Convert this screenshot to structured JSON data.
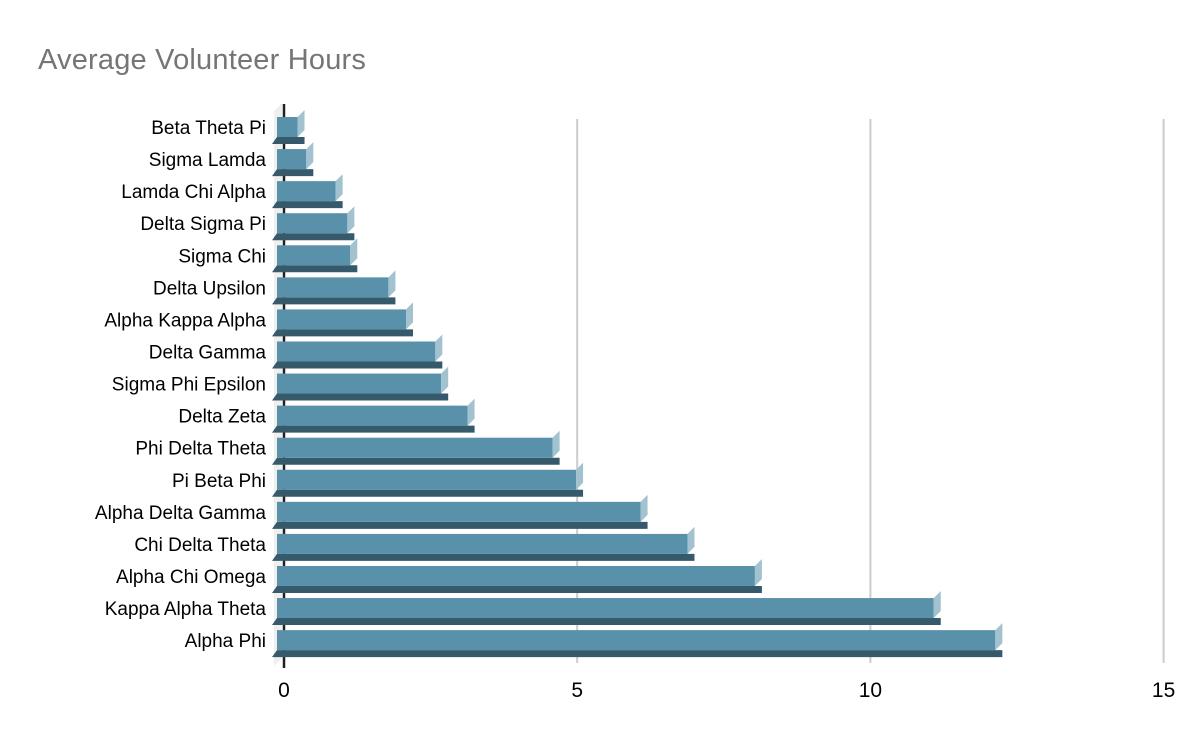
{
  "chart_data": {
    "type": "bar",
    "orientation": "horizontal",
    "title": "Average Volunteer Hours",
    "xlabel": "",
    "ylabel": "",
    "categories": [
      "Beta Theta Pi",
      "Sigma Lamda",
      "Lamda Chi Alpha",
      "Delta Sigma Pi",
      "Sigma Chi",
      "Delta Upsilon",
      "Alpha Kappa Alpha",
      "Delta Gamma",
      "Sigma Phi Epsilon",
      "Delta Zeta",
      "Phi Delta Theta",
      "Pi Beta Phi",
      "Alpha Delta Gamma",
      "Chi Delta Theta",
      "Alpha Chi Omega",
      "Kappa Alpha Theta",
      "Alpha Phi"
    ],
    "values": [
      0.35,
      0.5,
      1.0,
      1.2,
      1.25,
      1.9,
      2.2,
      2.7,
      2.8,
      3.25,
      4.7,
      5.1,
      6.2,
      7.0,
      8.15,
      11.2,
      12.25
    ],
    "x_axis": {
      "ticks": [
        0,
        5,
        10,
        15
      ],
      "tick_labels": [
        "0",
        "5",
        "10",
        "15"
      ],
      "xlim": [
        0,
        15
      ],
      "gridlines": true
    },
    "legend": "none",
    "style": "3d-extruded-bars",
    "colors": {
      "bar_face": "#5991aa",
      "bar_end_cap": "#a3c2d0",
      "bar_bottom_shadow": "#365a6b",
      "gridline": "#cccccc",
      "axis_line": "#212121",
      "wall_3d": "#efefef",
      "title_text": "#757575",
      "label_text": "#000000",
      "background": "#ffffff"
    }
  }
}
